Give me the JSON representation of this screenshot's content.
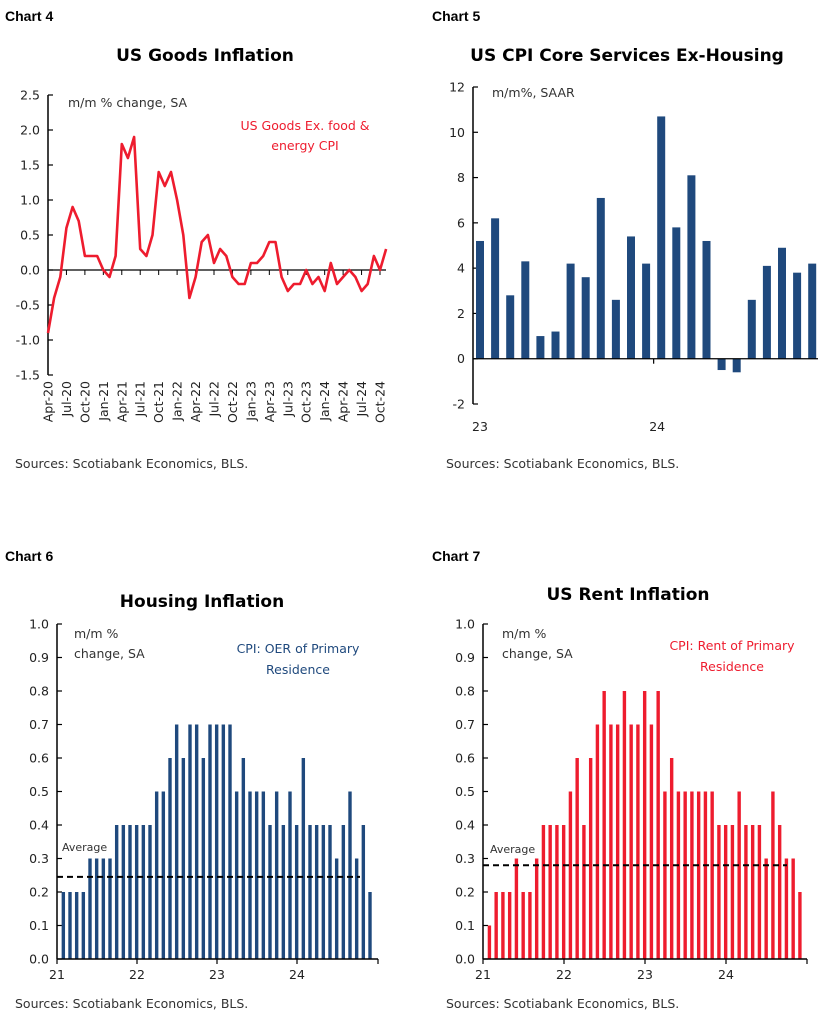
{
  "colors": {
    "red": "#ee1c2e",
    "navy": "#1f497d",
    "axis": "#000000"
  },
  "chart_data": [
    {
      "id": "chart4",
      "label": "Chart 4",
      "type": "line",
      "title": "US Goods Inflation",
      "note": "m/m % change, SA",
      "legend": [
        "US Goods Ex. food &",
        "energy CPI"
      ],
      "source": "Sources: Scotiabank Economics, BLS.",
      "ylim": [
        -1.5,
        2.5
      ],
      "yticks": [
        "2.5",
        "2.0",
        "1.5",
        "1.0",
        "0.5",
        "0.0",
        "-0.5",
        "-1.0",
        "-1.5"
      ],
      "xticks": [
        "Apr-20",
        "Jul-20",
        "Oct-20",
        "Jan-21",
        "Apr-21",
        "Jul-21",
        "Oct-21",
        "Jan-22",
        "Apr-22",
        "Jul-22",
        "Oct-22",
        "Jan-23",
        "Apr-23",
        "Jul-23",
        "Oct-23",
        "Jan-24",
        "Apr-24",
        "Jul-24",
        "Oct-24"
      ],
      "x_start": "Apr-20",
      "series": [
        {
          "name": "US Goods Ex. food & energy CPI",
          "color": "#ee1c2e",
          "values": [
            -0.9,
            -0.4,
            -0.1,
            0.6,
            0.9,
            0.7,
            0.2,
            0.2,
            0.2,
            0.0,
            -0.1,
            0.2,
            1.8,
            1.6,
            1.9,
            0.3,
            0.2,
            0.5,
            1.4,
            1.2,
            1.4,
            1.0,
            0.5,
            -0.4,
            -0.1,
            0.4,
            0.5,
            0.1,
            0.3,
            0.2,
            -0.1,
            -0.2,
            -0.2,
            0.1,
            0.1,
            0.2,
            0.4,
            0.4,
            -0.1,
            -0.3,
            -0.2,
            -0.2,
            0.0,
            -0.2,
            -0.1,
            -0.3,
            0.1,
            -0.2,
            -0.1,
            0.0,
            -0.1,
            -0.3,
            -0.2,
            0.2,
            0.0,
            0.3
          ]
        }
      ]
    },
    {
      "id": "chart5",
      "label": "Chart 5",
      "type": "bar",
      "title": "US CPI Core Services Ex-Housing",
      "note": "m/m%, SAAR",
      "source": "Sources: Scotiabank Economics, BLS.",
      "ylim": [
        -2,
        12
      ],
      "yticks": [
        "12",
        "10",
        "8",
        "6",
        "4",
        "2",
        "0",
        "-2"
      ],
      "xticks": [
        "23",
        "24"
      ],
      "series": [
        {
          "color": "#1f497d",
          "values": [
            5.2,
            6.2,
            2.8,
            4.3,
            1.0,
            1.2,
            4.2,
            3.6,
            7.1,
            2.6,
            5.4,
            4.2,
            10.7,
            5.8,
            8.1,
            5.2,
            -0.5,
            -0.6,
            2.6,
            4.1,
            4.9,
            3.8,
            4.2
          ]
        }
      ]
    },
    {
      "id": "chart6",
      "label": "Chart 6",
      "type": "bar",
      "title": "Housing Inflation",
      "note": [
        "m/m %",
        "change, SA"
      ],
      "legend": [
        "CPI: OER of Primary",
        "Residence"
      ],
      "average_label": "Average",
      "average": 0.245,
      "source": "Sources: Scotiabank Economics, BLS.",
      "ylim": [
        0,
        1.0
      ],
      "yticks": [
        "1.0",
        "0.9",
        "0.8",
        "0.7",
        "0.6",
        "0.5",
        "0.4",
        "0.3",
        "0.2",
        "0.1",
        "0.0"
      ],
      "xticks": [
        "21",
        "22",
        "23",
        "24"
      ],
      "series": [
        {
          "name": "CPI: OER of Primary Residence",
          "color": "#1f497d",
          "values": [
            0.2,
            0.2,
            0.2,
            0.2,
            0.3,
            0.3,
            0.3,
            0.3,
            0.4,
            0.4,
            0.4,
            0.4,
            0.4,
            0.4,
            0.5,
            0.5,
            0.6,
            0.7,
            0.6,
            0.7,
            0.7,
            0.6,
            0.7,
            0.7,
            0.7,
            0.7,
            0.5,
            0.6,
            0.5,
            0.5,
            0.5,
            0.4,
            0.5,
            0.4,
            0.5,
            0.4,
            0.6,
            0.4,
            0.4,
            0.4,
            0.4,
            0.3,
            0.4,
            0.5,
            0.3,
            0.4,
            0.2
          ]
        }
      ]
    },
    {
      "id": "chart7",
      "label": "Chart 7",
      "type": "bar",
      "title": "US Rent Inflation",
      "note": [
        "m/m %",
        "change, SA"
      ],
      "legend": [
        "CPI: Rent of Primary",
        "Residence"
      ],
      "average_label": "Average",
      "average": 0.28,
      "source": "Sources: Scotiabank Economics, BLS.",
      "ylim": [
        0,
        1.0
      ],
      "yticks": [
        "1.0",
        "0.9",
        "0.8",
        "0.7",
        "0.6",
        "0.5",
        "0.4",
        "0.3",
        "0.2",
        "0.1",
        "0.0"
      ],
      "xticks": [
        "21",
        "22",
        "23",
        "24"
      ],
      "series": [
        {
          "name": "CPI: Rent of Primary Residence",
          "color": "#ee1c2e",
          "values": [
            0.1,
            0.2,
            0.2,
            0.2,
            0.3,
            0.2,
            0.2,
            0.3,
            0.4,
            0.4,
            0.4,
            0.4,
            0.5,
            0.6,
            0.4,
            0.6,
            0.7,
            0.8,
            0.7,
            0.7,
            0.8,
            0.7,
            0.7,
            0.8,
            0.7,
            0.8,
            0.5,
            0.6,
            0.5,
            0.5,
            0.5,
            0.5,
            0.5,
            0.5,
            0.4,
            0.4,
            0.4,
            0.5,
            0.4,
            0.4,
            0.4,
            0.3,
            0.5,
            0.4,
            0.3,
            0.3,
            0.2
          ]
        }
      ]
    }
  ]
}
